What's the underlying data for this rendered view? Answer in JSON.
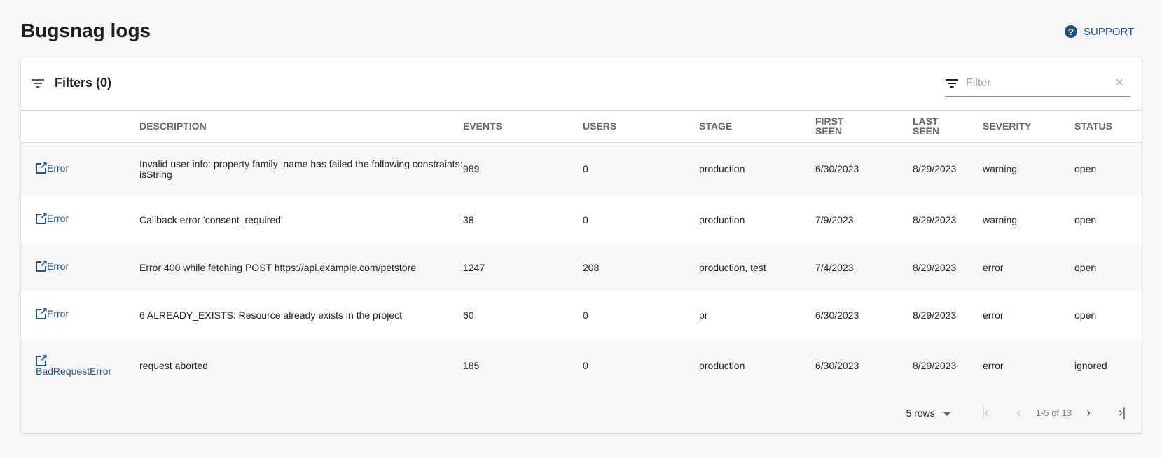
{
  "page": {
    "title": "Bugsnag logs",
    "support_label": "SUPPORT",
    "support_icon": "help-circle-icon"
  },
  "toolbar": {
    "filters_label": "Filters (0)",
    "filter_placeholder": "Filter",
    "filter_value": "",
    "clear_icon": "×"
  },
  "table": {
    "headers": [
      "",
      "DESCRIPTION",
      "EVENTS",
      "USERS",
      "STAGE",
      "FIRST SEEN",
      "LAST SEEN",
      "SEVERITY",
      "STATUS"
    ],
    "rows": [
      {
        "type": "Error",
        "description": "Invalid user info: property family_name has failed the following constraints: isString",
        "events": "989",
        "users": "0",
        "stage": "production",
        "first_seen": "6/30/2023",
        "last_seen": "8/29/2023",
        "severity": "warning",
        "status": "open"
      },
      {
        "type": "Error",
        "description": "Callback error 'consent_required'",
        "events": "38",
        "users": "0",
        "stage": "production",
        "first_seen": "7/9/2023",
        "last_seen": "8/29/2023",
        "severity": "warning",
        "status": "open"
      },
      {
        "type": "Error",
        "description": "Error 400 while fetching POST https://api.example.com/petstore",
        "events": "1247",
        "users": "208",
        "stage": "production, test",
        "first_seen": "7/4/2023",
        "last_seen": "8/29/2023",
        "severity": "error",
        "status": "open"
      },
      {
        "type": "Error",
        "description": "6 ALREADY_EXISTS: Resource already exists in the project",
        "events": "60",
        "users": "0",
        "stage": "pr",
        "first_seen": "6/30/2023",
        "last_seen": "8/29/2023",
        "severity": "error",
        "status": "open"
      },
      {
        "type": "BadRequestError",
        "description": "request aborted",
        "events": "185",
        "users": "0",
        "stage": "production",
        "first_seen": "6/30/2023",
        "last_seen": "8/29/2023",
        "severity": "error",
        "status": "ignored"
      }
    ]
  },
  "pagination": {
    "rows_label": "5 rows",
    "range": "1-5 of 13",
    "first": "|‹",
    "prev": "‹",
    "next": "›",
    "last": "›|"
  },
  "colors": {
    "accent": "#1d4f91",
    "background": "#f7f7f7"
  }
}
